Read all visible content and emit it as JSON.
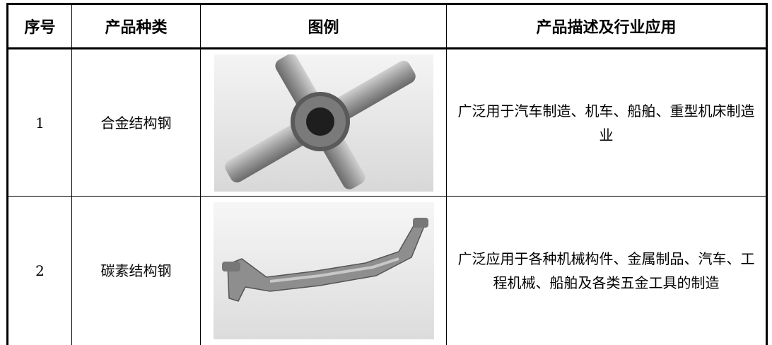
{
  "table": {
    "header": [
      "序号",
      "产品种类",
      "图例",
      "产品描述及行业应用"
    ],
    "rows": [
      {
        "no": "1",
        "type": "合金结构钢",
        "description": "广泛用于汽车制造、机车、船舶、重型机床制造业"
      },
      {
        "no": "2",
        "type": "碳素结构钢",
        "description": "广泛应用于各种机械构件、金属制品、汽车、工程机械、船舶及各类五金工具的制造"
      }
    ]
  }
}
